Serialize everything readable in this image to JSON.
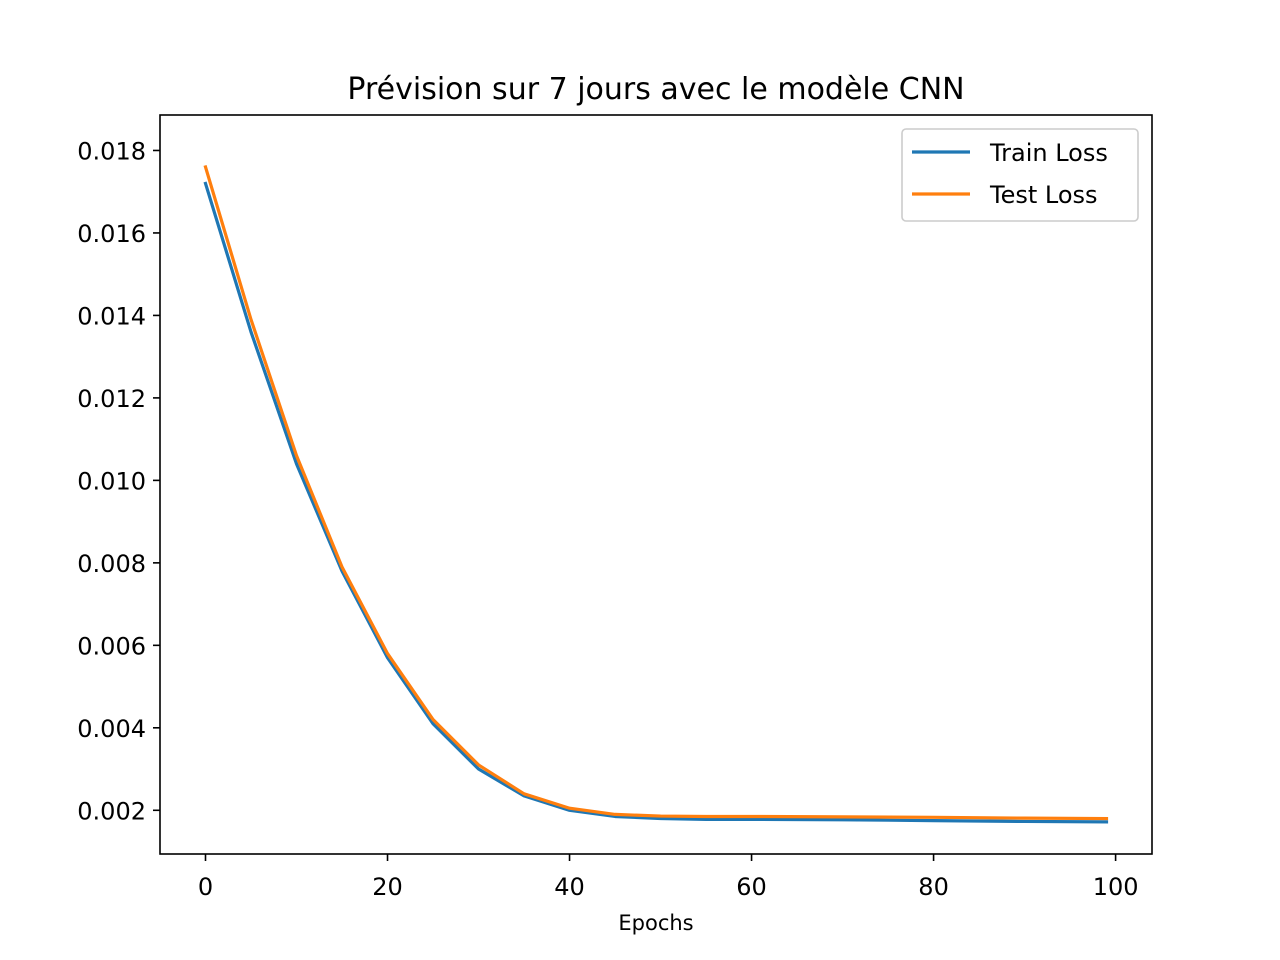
{
  "chart_data": {
    "type": "line",
    "title": "Prévision sur 7 jours avec le modèle CNN",
    "xlabel": "Epochs",
    "ylabel": "",
    "xlim": [
      -5,
      104
    ],
    "ylim": [
      0.00094,
      0.01886
    ],
    "xticks": [
      0,
      20,
      40,
      60,
      80,
      100
    ],
    "xtick_labels": [
      "0",
      "20",
      "40",
      "60",
      "80",
      "100"
    ],
    "yticks": [
      0.002,
      0.004,
      0.006,
      0.008,
      0.01,
      0.012,
      0.014,
      0.016,
      0.018
    ],
    "ytick_labels": [
      "0.002",
      "0.004",
      "0.006",
      "0.008",
      "0.010",
      "0.012",
      "0.014",
      "0.016",
      "0.018"
    ],
    "grid": false,
    "legend_position": "top-right",
    "series": [
      {
        "name": "Train Loss",
        "color": "#1f77b4",
        "x": [
          0,
          5,
          10,
          15,
          20,
          25,
          30,
          35,
          40,
          45,
          50,
          55,
          60,
          70,
          80,
          90,
          99
        ],
        "values": [
          0.0172,
          0.0136,
          0.0104,
          0.0078,
          0.0057,
          0.0041,
          0.003,
          0.00235,
          0.002,
          0.00185,
          0.0018,
          0.00178,
          0.00178,
          0.00177,
          0.00175,
          0.00173,
          0.00172
        ]
      },
      {
        "name": "Test Loss",
        "color": "#ff7f0e",
        "x": [
          0,
          5,
          10,
          15,
          20,
          25,
          30,
          35,
          40,
          45,
          50,
          55,
          60,
          70,
          80,
          90,
          99
        ],
        "values": [
          0.0176,
          0.0139,
          0.0106,
          0.0079,
          0.0058,
          0.0042,
          0.0031,
          0.0024,
          0.00205,
          0.0019,
          0.00186,
          0.00185,
          0.00185,
          0.00184,
          0.00183,
          0.00181,
          0.0018
        ]
      }
    ]
  }
}
